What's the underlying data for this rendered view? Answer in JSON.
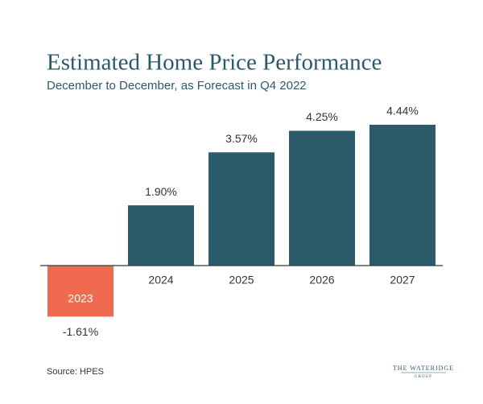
{
  "chart_data": {
    "type": "bar",
    "title": "Estimated Home Price Performance",
    "subtitle": "December to December, as Forecast in Q4 2022",
    "categories": [
      "2023",
      "2024",
      "2025",
      "2026",
      "2027"
    ],
    "values": [
      -1.61,
      1.9,
      3.57,
      4.25,
      4.44
    ],
    "value_labels": [
      "-1.61%",
      "1.90%",
      "3.57%",
      "4.25%",
      "4.44%"
    ],
    "color": "#2b5b6b",
    "negative_color": "#ef6a50",
    "source": "Source: HPES",
    "logo": "THE WATERIDGE",
    "logo_sub": "GROUP"
  }
}
